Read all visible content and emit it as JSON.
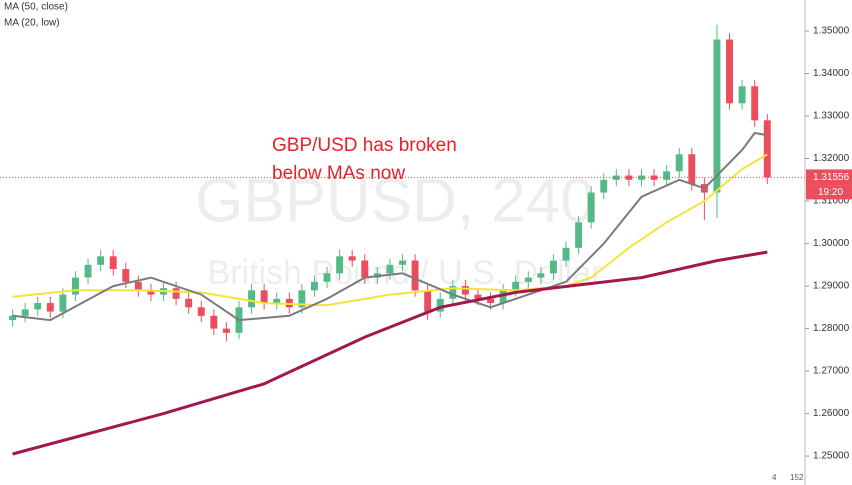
{
  "chart_data": {
    "type": "candlestick",
    "watermark": [
      "GBPUSD, 240",
      "British Pound / U.S. Dollar"
    ],
    "annotation": [
      "GBP/USD has broken",
      "below MAs now"
    ],
    "up_color": "#53b987",
    "down_color": "#eb4d5c",
    "xlim": [
      -1,
      63
    ],
    "ylim": [
      1.2432,
      1.3573
    ],
    "yticks": [
      {
        "value": 1.25,
        "label": "1.25000"
      },
      {
        "value": 1.26,
        "label": "1.26000"
      },
      {
        "value": 1.27,
        "label": "1.27000"
      },
      {
        "value": 1.28,
        "label": "1.28000"
      },
      {
        "value": 1.29,
        "label": "1.29000"
      },
      {
        "value": 1.3,
        "label": "1.30000"
      },
      {
        "value": 1.31,
        "label": "1.31000"
      },
      {
        "value": 1.32,
        "label": "1.32000"
      },
      {
        "value": 1.33,
        "label": "1.33000"
      },
      {
        "value": 1.34,
        "label": "1.34000"
      },
      {
        "value": 1.35,
        "label": "1.35000"
      }
    ],
    "grid": false,
    "candles": {
      "open": [
        1.282,
        1.283,
        1.2845,
        1.286,
        1.284,
        1.288,
        1.292,
        1.295,
        1.297,
        1.294,
        1.291,
        1.289,
        1.288,
        1.2895,
        1.287,
        1.285,
        1.283,
        1.28,
        1.279,
        1.285,
        1.289,
        1.286,
        1.287,
        1.285,
        1.289,
        1.291,
        1.293,
        1.297,
        1.296,
        1.292,
        1.293,
        1.295,
        1.296,
        1.289,
        1.284,
        1.287,
        1.29,
        1.288,
        1.287,
        1.286,
        1.289,
        1.291,
        1.292,
        1.293,
        1.296,
        1.299,
        1.305,
        1.312,
        1.315,
        1.316,
        1.315,
        1.316,
        1.315,
        1.317,
        1.321,
        1.314,
        1.312,
        1.348,
        1.333,
        1.337,
        1.329
      ],
      "high": [
        1.2845,
        1.286,
        1.2875,
        1.2875,
        1.2895,
        1.2935,
        1.2965,
        1.2985,
        1.2985,
        1.2955,
        1.2925,
        1.2905,
        1.291,
        1.291,
        1.2885,
        1.2865,
        1.2845,
        1.2815,
        1.2865,
        1.2905,
        1.2905,
        1.2885,
        1.2885,
        1.2905,
        1.2925,
        1.2945,
        1.2985,
        1.2985,
        1.2975,
        1.2945,
        1.2965,
        1.2975,
        1.2975,
        1.2905,
        1.2885,
        1.2915,
        1.2915,
        1.2895,
        1.2885,
        1.2905,
        1.2925,
        1.2935,
        1.2945,
        1.2975,
        1.3005,
        1.3065,
        1.3135,
        1.3165,
        1.3175,
        1.3175,
        1.3175,
        1.3175,
        1.3185,
        1.3225,
        1.3225,
        1.3155,
        1.3515,
        1.3495,
        1.3385,
        1.3385,
        1.3305
      ],
      "low": [
        1.2805,
        1.2815,
        1.283,
        1.2825,
        1.2825,
        1.2865,
        1.2905,
        1.2935,
        1.2925,
        1.2895,
        1.2875,
        1.2865,
        1.2865,
        1.2855,
        1.2835,
        1.2815,
        1.2785,
        1.277,
        1.2775,
        1.2835,
        1.2845,
        1.2845,
        1.2835,
        1.2835,
        1.2875,
        1.2895,
        1.2915,
        1.2945,
        1.2905,
        1.2905,
        1.2915,
        1.2935,
        1.2875,
        1.282,
        1.2825,
        1.2855,
        1.2865,
        1.2855,
        1.2845,
        1.2845,
        1.2875,
        1.2895,
        1.2905,
        1.2915,
        1.2945,
        1.2975,
        1.3035,
        1.3105,
        1.3135,
        1.3135,
        1.3135,
        1.3135,
        1.3135,
        1.3155,
        1.3125,
        1.3055,
        1.306,
        1.3315,
        1.3315,
        1.3275,
        1.314
      ],
      "close": [
        1.283,
        1.2845,
        1.286,
        1.284,
        1.288,
        1.292,
        1.295,
        1.297,
        1.294,
        1.291,
        1.289,
        1.288,
        1.2895,
        1.287,
        1.285,
        1.283,
        1.28,
        1.279,
        1.285,
        1.289,
        1.286,
        1.287,
        1.285,
        1.289,
        1.291,
        1.293,
        1.297,
        1.296,
        1.292,
        1.293,
        1.295,
        1.296,
        1.289,
        1.284,
        1.287,
        1.29,
        1.288,
        1.287,
        1.286,
        1.289,
        1.291,
        1.292,
        1.293,
        1.296,
        1.299,
        1.305,
        1.312,
        1.315,
        1.316,
        1.315,
        1.316,
        1.315,
        1.317,
        1.321,
        1.314,
        1.312,
        1.348,
        1.333,
        1.337,
        1.329,
        1.3156
      ]
    },
    "lines": [
      {
        "name": "MA (50, close)",
        "color": "#f5e33d",
        "x": [
          0,
          5,
          10,
          15,
          20,
          25,
          30,
          35,
          40,
          44,
          46,
          49,
          52,
          55,
          58,
          60
        ],
        "values": [
          1.2875,
          1.289,
          1.289,
          1.2885,
          1.286,
          1.2855,
          1.288,
          1.2895,
          1.289,
          1.29,
          1.292,
          1.299,
          1.305,
          1.31,
          1.3175,
          1.321
        ]
      },
      {
        "name": "MA (20, low)",
        "color": "#7b7b7b",
        "x": [
          0,
          3,
          8,
          11,
          15,
          18,
          22,
          25,
          28,
          31,
          35,
          38,
          41,
          44,
          47,
          50,
          53,
          55,
          58,
          59,
          60
        ],
        "values": [
          1.283,
          1.282,
          1.29,
          1.292,
          1.288,
          1.282,
          1.283,
          1.287,
          1.292,
          1.293,
          1.288,
          1.285,
          1.288,
          1.291,
          1.3,
          1.311,
          1.315,
          1.313,
          1.322,
          1.326,
          1.3255
        ]
      },
      {
        "color": "#a3174f",
        "x": [
          0,
          12,
          20,
          28,
          34,
          40,
          50,
          56,
          60
        ],
        "values": [
          1.2505,
          1.26,
          1.267,
          1.278,
          1.285,
          1.2885,
          1.292,
          1.296,
          1.298
        ]
      }
    ],
    "last_price": {
      "value": 1.31556,
      "label": "1.31556"
    },
    "countdown": "19:20",
    "corner_counts": [
      4,
      152
    ]
  }
}
